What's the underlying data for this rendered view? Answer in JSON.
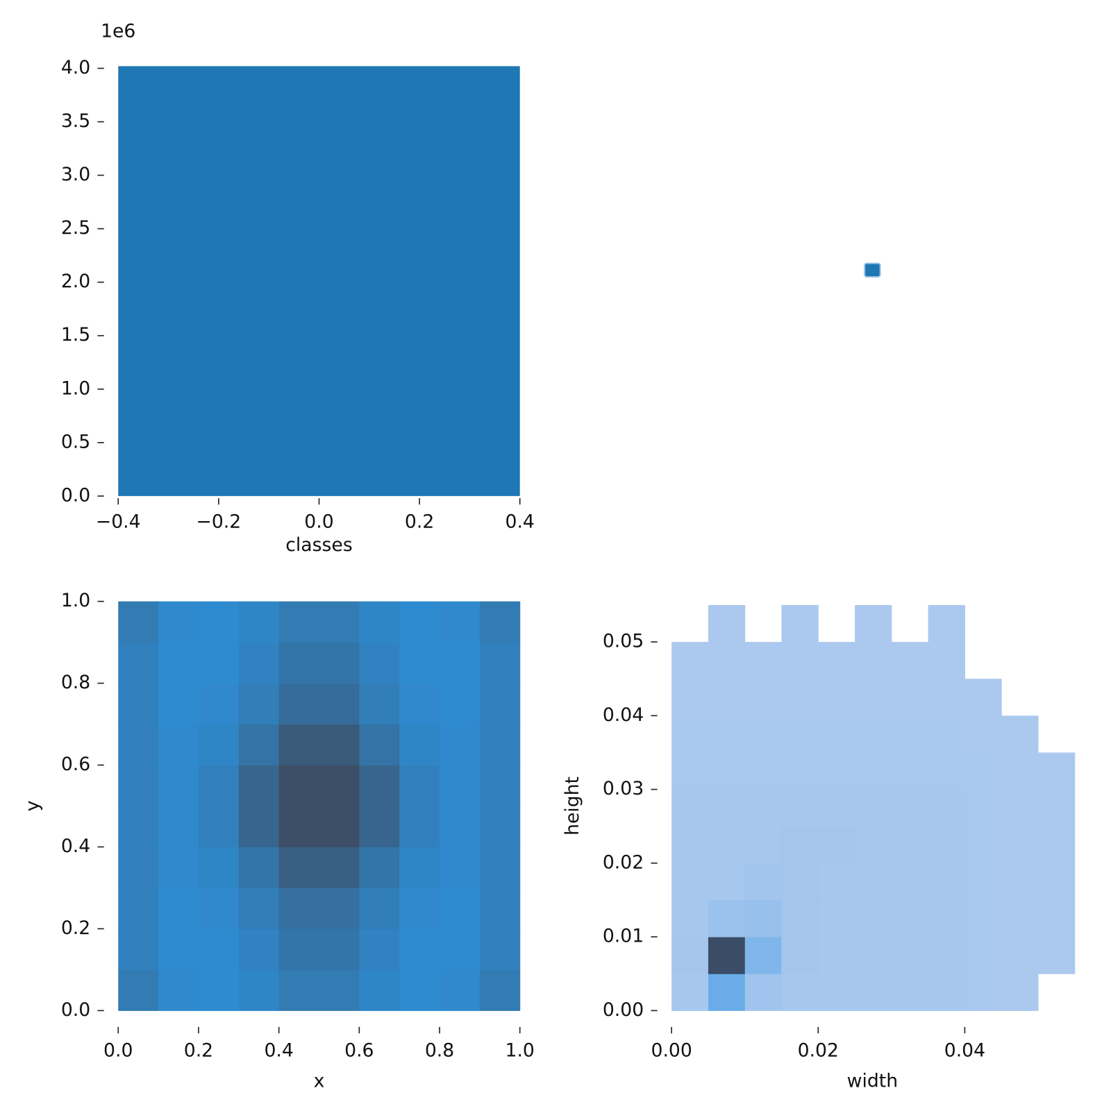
{
  "chart_data": [
    {
      "type": "histogram",
      "x_label": "classes",
      "offset_text": "1e6",
      "color": "#1f77b4",
      "bins": [
        -0.4,
        0.4
      ],
      "values": [
        4020000
      ],
      "xlim": [
        -0.4,
        0.4
      ],
      "ylim": [
        0,
        4020000
      ],
      "xticks": [
        {
          "value": -0.4,
          "label": "−0.4"
        },
        {
          "value": -0.2,
          "label": "−0.2"
        },
        {
          "value": 0,
          "label": "0.0"
        },
        0.2,
        0.4
      ],
      "yticks": [
        {
          "value": 0,
          "label": "0.0"
        },
        {
          "value": 500000,
          "label": "0.5"
        },
        {
          "value": 1000000,
          "label": "1.0"
        },
        {
          "value": 1500000,
          "label": "1.5"
        },
        {
          "value": 2000000,
          "label": "2.0"
        },
        {
          "value": 2500000,
          "label": "2.5"
        },
        {
          "value": 3000000,
          "label": "3.0"
        },
        {
          "value": 3500000,
          "label": "3.5"
        },
        {
          "value": 4000000,
          "label": "4.0"
        }
      ]
    },
    {
      "type": "heatmap",
      "x_label": "x",
      "y_label": "y",
      "cmap": [
        "#2e8bd0",
        "#3d4f66"
      ],
      "xbins": [
        0,
        0.1,
        0.2,
        0.3,
        0.4,
        0.5,
        0.6,
        0.7,
        0.8,
        0.9,
        1
      ],
      "ybins": [
        0,
        0.1,
        0.2,
        0.3,
        0.4,
        0.5,
        0.6,
        0.7,
        0.8,
        0.9,
        1
      ],
      "z": [
        [
          55,
          42,
          40,
          45,
          55,
          55,
          45,
          40,
          42,
          55
        ],
        [
          50,
          40,
          40,
          48,
          60,
          60,
          48,
          40,
          40,
          50
        ],
        [
          50,
          40,
          42,
          52,
          65,
          65,
          52,
          42,
          40,
          50
        ],
        [
          50,
          42,
          45,
          60,
          80,
          80,
          60,
          45,
          42,
          50
        ],
        [
          50,
          42,
          50,
          75,
          95,
          95,
          75,
          50,
          42,
          50
        ],
        [
          50,
          42,
          50,
          75,
          95,
          95,
          75,
          50,
          42,
          50
        ],
        [
          50,
          42,
          45,
          62,
          85,
          85,
          62,
          45,
          42,
          50
        ],
        [
          50,
          40,
          42,
          52,
          68,
          68,
          52,
          42,
          40,
          50
        ],
        [
          50,
          40,
          40,
          48,
          60,
          60,
          48,
          40,
          40,
          50
        ],
        [
          55,
          42,
          40,
          45,
          55,
          55,
          45,
          40,
          42,
          55
        ]
      ],
      "xlim": [
        0,
        1
      ],
      "ylim": [
        0,
        1
      ],
      "xticks": [
        {
          "value": 0,
          "label": "0.0"
        },
        0.2,
        0.4,
        0.6,
        0.8,
        {
          "value": 1,
          "label": "1.0"
        }
      ],
      "yticks": [
        {
          "value": 0,
          "label": "0.0"
        },
        0.2,
        0.4,
        0.6,
        0.8,
        {
          "value": 1,
          "label": "1.0"
        }
      ]
    },
    {
      "type": "heatmap",
      "x_label": "width",
      "y_label": "height",
      "cmap": [
        "#abc9ee",
        "#3b97e3",
        "#3a4c66"
      ],
      "xbins": [
        0,
        0.005,
        0.01,
        0.015,
        0.02,
        0.025,
        0.03,
        0.035,
        0.04,
        0.045,
        0.05,
        0.055
      ],
      "ybins": [
        0,
        0.005,
        0.01,
        0.015,
        0.02,
        0.025,
        0.03,
        0.035,
        0.04,
        0.045,
        0.05,
        0.055
      ],
      "z": [
        [
          3,
          30,
          6,
          3,
          3,
          3,
          3,
          3,
          2,
          1,
          0
        ],
        [
          4,
          100,
          20,
          4,
          3,
          3,
          3,
          3,
          2,
          1,
          1
        ],
        [
          3,
          8,
          10,
          4,
          3,
          3,
          3,
          3,
          2,
          1,
          1
        ],
        [
          3,
          3,
          5,
          4,
          3,
          3,
          3,
          3,
          2,
          1,
          1
        ],
        [
          3,
          3,
          3,
          4,
          4,
          3,
          3,
          3,
          2,
          1,
          1
        ],
        [
          3,
          3,
          3,
          3,
          3,
          3,
          3,
          3,
          2,
          1,
          1
        ],
        [
          2,
          2,
          2,
          2,
          2,
          2,
          2,
          2,
          2,
          1,
          1
        ],
        [
          2,
          2,
          2,
          2,
          2,
          2,
          2,
          2,
          1,
          1,
          0
        ],
        [
          1,
          1,
          1,
          1,
          1,
          1,
          1,
          1,
          1,
          0,
          0
        ],
        [
          1,
          1,
          1,
          1,
          1,
          1,
          1,
          1,
          0,
          0,
          0
        ],
        [
          0,
          1,
          0,
          1,
          0,
          1,
          0,
          1,
          0,
          0,
          0
        ]
      ],
      "xlim": [
        0,
        0.0548
      ],
      "ylim": [
        0,
        0.0555
      ],
      "xticks": [
        {
          "value": 0,
          "label": "0.00"
        },
        {
          "value": 0.02,
          "label": "0.02"
        },
        {
          "value": 0.04,
          "label": "0.04"
        }
      ],
      "yticks": [
        {
          "value": 0,
          "label": "0.00"
        },
        {
          "value": 0.01,
          "label": "0.01"
        },
        {
          "value": 0.02,
          "label": "0.02"
        },
        {
          "value": 0.03,
          "label": "0.03"
        },
        {
          "value": 0.04,
          "label": "0.04"
        },
        {
          "value": 0.05,
          "label": "0.05"
        }
      ]
    }
  ]
}
